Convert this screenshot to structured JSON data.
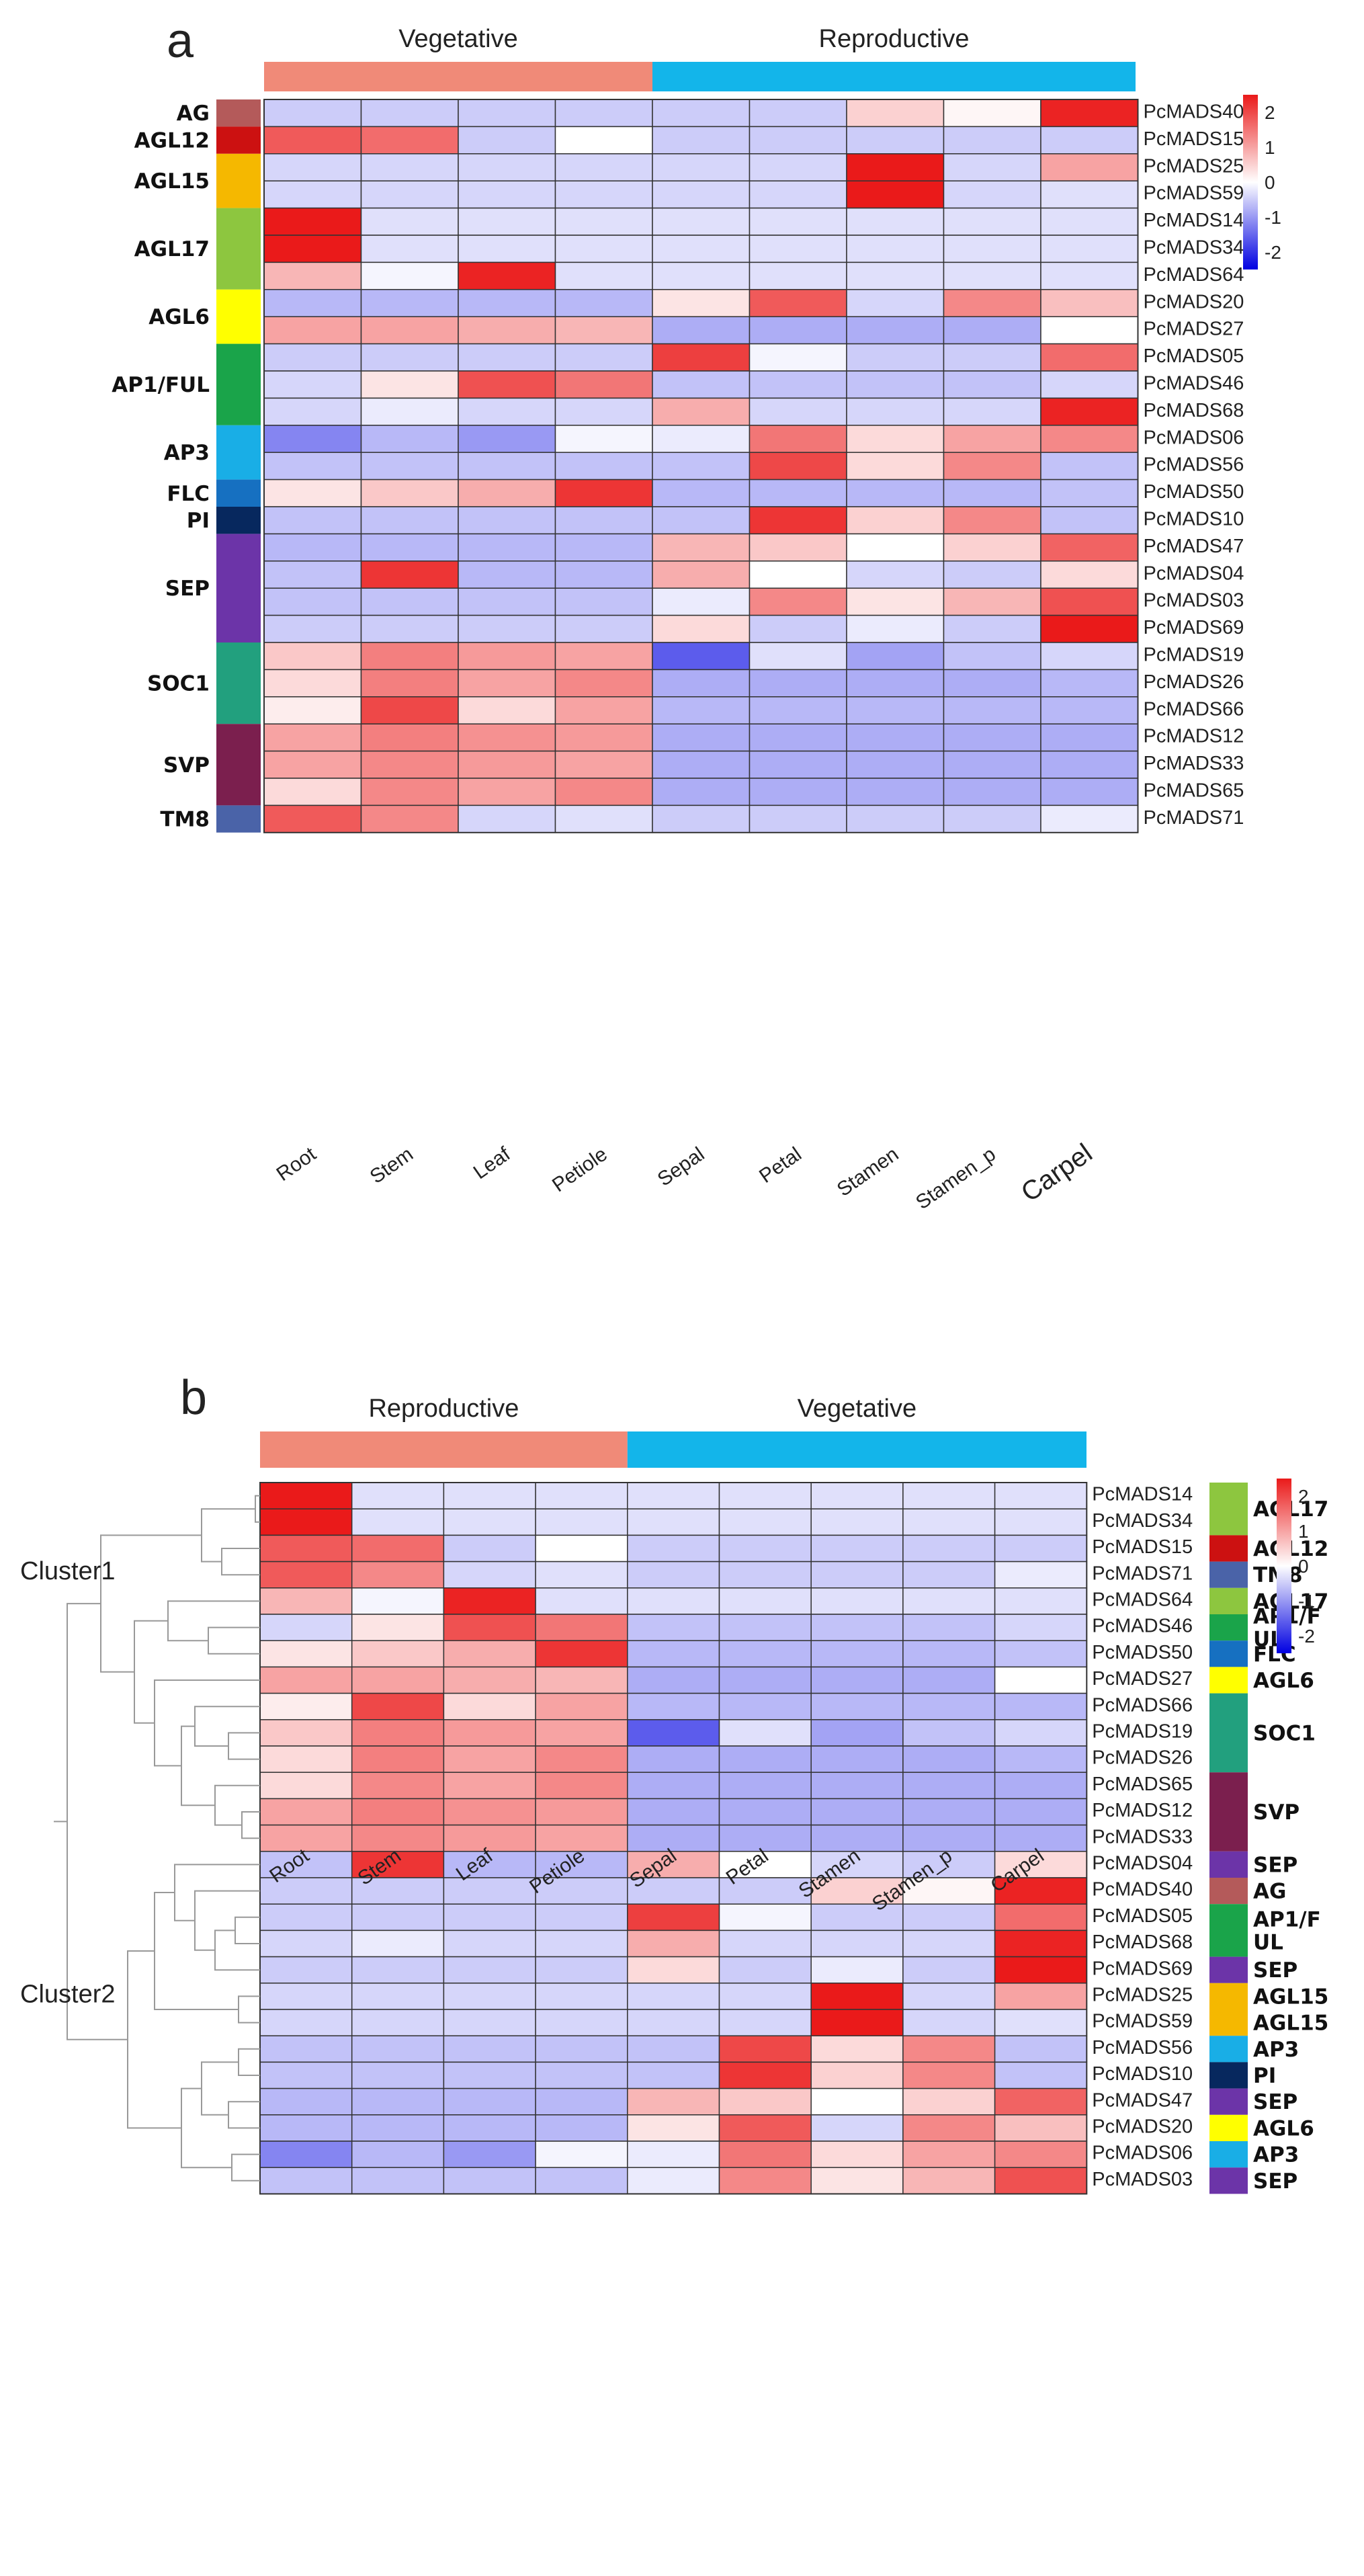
{
  "chart_data": [
    {
      "type": "heatmap",
      "panel_label": "a",
      "group_bar": [
        {
          "label": "Vegetative",
          "color": "#f08a78"
        },
        {
          "label": "Reproductive",
          "color": "#13b5ea"
        }
      ],
      "columns": [
        "Root",
        "Stem",
        "Leaf",
        "Petiole",
        "Sepal",
        "Petal",
        "Stamen",
        "Stamen_p",
        "Carpel"
      ],
      "rows": [
        "PcMADS40",
        "PcMADS15",
        "PcMADS25",
        "PcMADS59",
        "PcMADS14",
        "PcMADS34",
        "PcMADS64",
        "PcMADS20",
        "PcMADS27",
        "PcMADS05",
        "PcMADS46",
        "PcMADS68",
        "PcMADS06",
        "PcMADS56",
        "PcMADS50",
        "PcMADS10",
        "PcMADS47",
        "PcMADS04",
        "PcMADS03",
        "PcMADS69",
        "PcMADS19",
        "PcMADS26",
        "PcMADS66",
        "PcMADS12",
        "PcMADS33",
        "PcMADS65",
        "PcMADS71"
      ],
      "values": [
        [
          -0.5,
          -0.5,
          -0.5,
          -0.5,
          -0.5,
          -0.5,
          0.5,
          0.1,
          2.4
        ],
        [
          1.8,
          1.6,
          -0.5,
          0.0,
          -0.5,
          -0.5,
          -0.5,
          -0.5,
          -0.5
        ],
        [
          -0.4,
          -0.4,
          -0.4,
          -0.4,
          -0.4,
          -0.4,
          2.5,
          -0.4,
          1.0
        ],
        [
          -0.4,
          -0.4,
          -0.4,
          -0.4,
          -0.4,
          -0.4,
          2.5,
          -0.4,
          -0.3
        ],
        [
          2.5,
          -0.3,
          -0.3,
          -0.3,
          -0.3,
          -0.3,
          -0.3,
          -0.3,
          -0.3
        ],
        [
          2.5,
          -0.3,
          -0.3,
          -0.3,
          -0.3,
          -0.3,
          -0.3,
          -0.3,
          -0.3
        ],
        [
          0.8,
          -0.1,
          2.4,
          -0.3,
          -0.3,
          -0.3,
          -0.3,
          -0.3,
          -0.3
        ],
        [
          -0.7,
          -0.7,
          -0.7,
          -0.7,
          0.3,
          1.8,
          -0.4,
          1.3,
          0.7
        ],
        [
          1.0,
          1.0,
          0.9,
          0.8,
          -0.8,
          -0.8,
          -0.8,
          -0.8,
          0.0
        ],
        [
          -0.5,
          -0.5,
          -0.5,
          -0.5,
          2.1,
          -0.1,
          -0.5,
          -0.5,
          1.6
        ],
        [
          -0.4,
          0.3,
          1.9,
          1.5,
          -0.6,
          -0.6,
          -0.6,
          -0.6,
          -0.4
        ],
        [
          -0.4,
          -0.2,
          -0.4,
          -0.4,
          0.9,
          -0.4,
          -0.4,
          -0.4,
          2.4
        ],
        [
          -1.2,
          -0.7,
          -1.0,
          -0.1,
          -0.2,
          1.5,
          0.4,
          1.0,
          1.3
        ],
        [
          -0.6,
          -0.6,
          -0.6,
          -0.6,
          -0.6,
          2.0,
          0.4,
          1.3,
          -0.6
        ],
        [
          0.3,
          0.6,
          0.9,
          2.2,
          -0.7,
          -0.7,
          -0.7,
          -0.7,
          -0.6
        ],
        [
          -0.6,
          -0.6,
          -0.6,
          -0.6,
          -0.6,
          2.2,
          0.5,
          1.3,
          -0.6
        ],
        [
          -0.7,
          -0.7,
          -0.7,
          -0.7,
          0.8,
          0.6,
          0.0,
          0.5,
          1.7
        ],
        [
          -0.6,
          2.2,
          -0.7,
          -0.7,
          0.9,
          0.0,
          -0.4,
          -0.5,
          0.4
        ],
        [
          -0.6,
          -0.6,
          -0.6,
          -0.6,
          -0.2,
          1.3,
          0.3,
          0.8,
          1.9
        ],
        [
          -0.5,
          -0.5,
          -0.5,
          -0.5,
          0.4,
          -0.5,
          -0.2,
          -0.5,
          2.5
        ],
        [
          0.6,
          1.4,
          1.1,
          1.0,
          -1.6,
          -0.3,
          -0.9,
          -0.6,
          -0.4
        ],
        [
          0.4,
          1.4,
          1.0,
          1.3,
          -0.8,
          -0.8,
          -0.8,
          -0.8,
          -0.7
        ],
        [
          0.2,
          2.0,
          0.4,
          1.0,
          -0.7,
          -0.7,
          -0.7,
          -0.7,
          -0.7
        ],
        [
          1.0,
          1.4,
          1.2,
          1.1,
          -0.8,
          -0.8,
          -0.8,
          -0.8,
          -0.8
        ],
        [
          1.0,
          1.3,
          1.1,
          1.0,
          -0.8,
          -0.8,
          -0.8,
          -0.8,
          -0.8
        ],
        [
          0.4,
          1.3,
          1.0,
          1.3,
          -0.8,
          -0.8,
          -0.8,
          -0.8,
          -0.8
        ],
        [
          1.8,
          1.3,
          -0.4,
          -0.3,
          -0.5,
          -0.5,
          -0.5,
          -0.5,
          -0.2
        ]
      ],
      "annotation": [
        {
          "label": "AG",
          "span": 1,
          "color": "#b45a5a"
        },
        {
          "label": "AGL12",
          "span": 1,
          "color": "#cc1111"
        },
        {
          "label": "AGL15",
          "span": 2,
          "color": "#f5b800"
        },
        {
          "label": "AGL17",
          "span": 3,
          "color": "#8dc63f"
        },
        {
          "label": "AGL6",
          "span": 2,
          "color": "#ffff00"
        },
        {
          "label": "AP1/FUL",
          "span": 3,
          "color": "#1aa44a"
        },
        {
          "label": "AP3",
          "span": 2,
          "color": "#19aee6"
        },
        {
          "label": "FLC",
          "span": 1,
          "color": "#1670c1"
        },
        {
          "label": "PI",
          "span": 1,
          "color": "#07285e"
        },
        {
          "label": "SEP",
          "span": 4,
          "color": "#6c34a8"
        },
        {
          "label": "SOC1",
          "span": 3,
          "color": "#22a07e"
        },
        {
          "label": "SVP",
          "span": 3,
          "color": "#7b1f4e"
        },
        {
          "label": "TM8",
          "span": 1,
          "color": "#4a63a8"
        }
      ],
      "legend": {
        "ticks": [
          "2",
          "1",
          "0",
          "-1",
          "-2"
        ],
        "range": [
          -2.5,
          2.5
        ],
        "placement": "top-right"
      }
    },
    {
      "type": "heatmap",
      "panel_label": "b",
      "group_bar": [
        {
          "label": "Reproductive",
          "color": "#f08a78"
        },
        {
          "label": "Vegetative",
          "color": "#13b5ea"
        }
      ],
      "columns": [
        "Root",
        "Stem",
        "Leaf",
        "Petiole",
        "Sepal",
        "Petal",
        "Stamen",
        "Stamen_p",
        "Carpel"
      ],
      "rows": [
        "PcMADS14",
        "PcMADS34",
        "PcMADS15",
        "PcMADS71",
        "PcMADS64",
        "PcMADS46",
        "PcMADS50",
        "PcMADS27",
        "PcMADS66",
        "PcMADS19",
        "PcMADS26",
        "PcMADS65",
        "PcMADS12",
        "PcMADS33",
        "PcMADS04",
        "PcMADS40",
        "PcMADS05",
        "PcMADS68",
        "PcMADS69",
        "PcMADS25",
        "PcMADS59",
        "PcMADS56",
        "PcMADS10",
        "PcMADS47",
        "PcMADS20",
        "PcMADS06",
        "PcMADS03"
      ],
      "clusters": [
        {
          "label": "Cluster1",
          "rows": 14
        },
        {
          "label": "Cluster2",
          "rows": 13
        }
      ],
      "annotation": [
        {
          "label": "AGL17",
          "span": 2,
          "color": "#8dc63f"
        },
        {
          "label": "AGL12",
          "span": 1,
          "color": "#cc1111"
        },
        {
          "label": "TM8",
          "span": 1,
          "color": "#4a63a8"
        },
        {
          "label": "AGL17",
          "span": 1,
          "color": "#8dc63f"
        },
        {
          "label": "AP1/F\nUL",
          "span": 1,
          "color": "#1aa44a"
        },
        {
          "label": "FLC",
          "span": 1,
          "color": "#1670c1"
        },
        {
          "label": "AGL6",
          "span": 1,
          "color": "#ffff00"
        },
        {
          "label": "SOC1",
          "span": 3,
          "color": "#22a07e"
        },
        {
          "label": "SVP",
          "span": 3,
          "color": "#7b1f4e"
        },
        {
          "label": "SEP",
          "span": 1,
          "color": "#6c34a8"
        },
        {
          "label": "AG",
          "span": 1,
          "color": "#b45a5a"
        },
        {
          "label": "AP1/F\nUL",
          "span": 2,
          "color": "#1aa44a"
        },
        {
          "label": "SEP",
          "span": 1,
          "color": "#6c34a8"
        },
        {
          "label": "AGL15",
          "span": 1,
          "color": "#f5b800"
        },
        {
          "label": "AGL15",
          "span": 1,
          "color": "#f5b800"
        },
        {
          "label": "AP3",
          "span": 1,
          "color": "#19aee6"
        },
        {
          "label": "PI",
          "span": 1,
          "color": "#07285e"
        },
        {
          "label": "SEP",
          "span": 1,
          "color": "#6c34a8"
        },
        {
          "label": "AGL6",
          "span": 1,
          "color": "#ffff00"
        },
        {
          "label": "AP3",
          "span": 1,
          "color": "#19aee6"
        },
        {
          "label": "SEP",
          "span": 1,
          "color": "#6c34a8"
        }
      ],
      "legend": {
        "ticks": [
          "2",
          "1",
          "0",
          "-1",
          "-2"
        ],
        "range": [
          -2.5,
          2.5
        ],
        "placement": "top-right"
      }
    }
  ]
}
